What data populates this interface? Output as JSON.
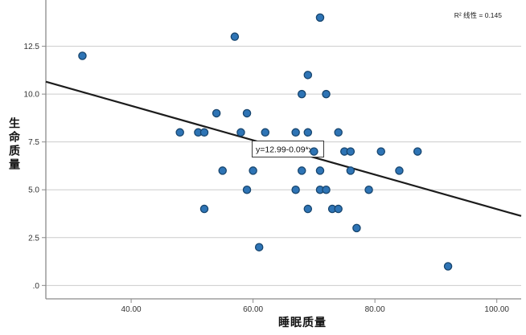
{
  "chart_data": {
    "type": "scatter",
    "title": "",
    "xlabel": "睡眠质量",
    "ylabel": "生命质量",
    "xlim": [
      26,
      104
    ],
    "ylim": [
      -0.7,
      14.75
    ],
    "grid": "horizontal",
    "legend": "none",
    "x_ticks": [
      {
        "value": 40,
        "label": "40.00"
      },
      {
        "value": 60,
        "label": "60.00"
      },
      {
        "value": 80,
        "label": "80.00"
      },
      {
        "value": 100,
        "label": "100.00"
      }
    ],
    "y_ticks": [
      {
        "value": 12.5,
        "label": "12.5"
      },
      {
        "value": 10.0,
        "label": "10.0"
      },
      {
        "value": 7.5,
        "label": "7.5"
      },
      {
        "value": 5.0,
        "label": "5.0"
      },
      {
        "value": 2.5,
        "label": "2.5"
      },
      {
        "value": 0.0,
        "label": ".0"
      }
    ],
    "points": [
      [
        32,
        12
      ],
      [
        57,
        13
      ],
      [
        71,
        14
      ],
      [
        69,
        11
      ],
      [
        68,
        10
      ],
      [
        72,
        10
      ],
      [
        54,
        9
      ],
      [
        59,
        9
      ],
      [
        48,
        8
      ],
      [
        51,
        8
      ],
      [
        52,
        8
      ],
      [
        58,
        8
      ],
      [
        62,
        8
      ],
      [
        67,
        8
      ],
      [
        69,
        8
      ],
      [
        74,
        8
      ],
      [
        70,
        7
      ],
      [
        75,
        7
      ],
      [
        76,
        7
      ],
      [
        81,
        7
      ],
      [
        87,
        7
      ],
      [
        55,
        6
      ],
      [
        60,
        6
      ],
      [
        68,
        6
      ],
      [
        71,
        6
      ],
      [
        76,
        6
      ],
      [
        84,
        6
      ],
      [
        59,
        5
      ],
      [
        67,
        5
      ],
      [
        71,
        5
      ],
      [
        72,
        5
      ],
      [
        79,
        5
      ],
      [
        52,
        4
      ],
      [
        69,
        4
      ],
      [
        73,
        4
      ],
      [
        74,
        4
      ],
      [
        77,
        3
      ],
      [
        61,
        2
      ],
      [
        92,
        1
      ]
    ],
    "regression": {
      "slope": -0.09,
      "intercept": 12.99,
      "label": "y=12.99-0.09*x"
    },
    "r_squared_label": "R² 线性 = 0.145",
    "colors": {
      "point_fill": "#2E74B5",
      "point_stroke": "#17456E",
      "regression_line": "#1c1c1c",
      "grid": "#cccccc",
      "axis": "#8a8a8a",
      "tick_text": "#333333",
      "background": "#ffffff"
    }
  }
}
